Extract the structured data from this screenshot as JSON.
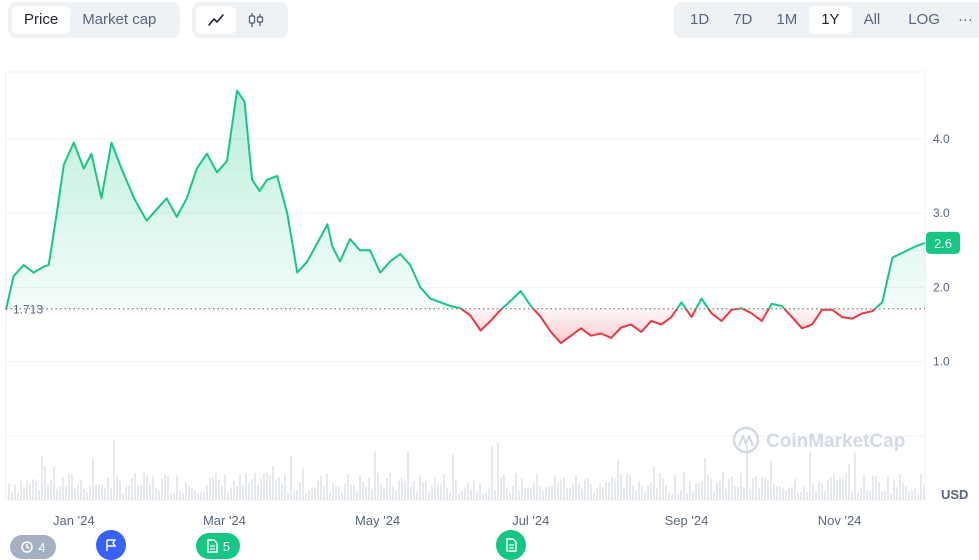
{
  "toolbar": {
    "metric_tabs": [
      {
        "label": "Price",
        "active": true
      },
      {
        "label": "Market cap",
        "active": false
      }
    ],
    "chart_type_icons": [
      "line-chart-icon",
      "candlestick-icon"
    ],
    "ranges": [
      {
        "label": "1D",
        "active": false
      },
      {
        "label": "7D",
        "active": false
      },
      {
        "label": "1M",
        "active": false
      },
      {
        "label": "1Y",
        "active": true
      },
      {
        "label": "All",
        "active": false
      },
      {
        "label": "LOG",
        "active": false
      }
    ],
    "more_label": "···"
  },
  "watermark": "CoinMarketCap",
  "currency_label": "USD",
  "colors": {
    "up": "#16c784",
    "down": "#ea3943",
    "grid": "#eff2f5",
    "text": "#58667e"
  },
  "badges": [
    {
      "name": "history-badge",
      "label": "4",
      "icon": "history-icon",
      "color": "#a6b0c3"
    },
    {
      "name": "flag-badge",
      "label": "",
      "icon": "flag-icon",
      "color": "#3861fb"
    },
    {
      "name": "news-badge",
      "label": "5",
      "icon": "document-icon",
      "color": "#16c784"
    },
    {
      "name": "news-badge-jul",
      "label": "",
      "icon": "document-icon",
      "color": "#16c784"
    }
  ],
  "chart_data": {
    "type": "area",
    "title": "",
    "xlabel": "",
    "ylabel": "USD",
    "x_range": [
      "2023-12-05",
      "2024-12-05"
    ],
    "ylim": [
      0,
      4.9
    ],
    "y_ticks": [
      1.0,
      2.0,
      3.0,
      4.0
    ],
    "x_ticks": [
      {
        "label": "Jan '24",
        "date": "2024-01-01"
      },
      {
        "label": "Mar '24",
        "date": "2024-03-01"
      },
      {
        "label": "May '24",
        "date": "2024-05-01"
      },
      {
        "label": "Jul '24",
        "date": "2024-07-01"
      },
      {
        "label": "Sep '24",
        "date": "2024-09-01"
      },
      {
        "label": "Nov '24",
        "date": "2024-11-01"
      }
    ],
    "baseline": 1.713,
    "baseline_label": "1.713",
    "current_price_label": "2.6",
    "grid": true,
    "series": [
      {
        "x": [
          "2023-12-05",
          "2023-12-08",
          "2023-12-12",
          "2023-12-16",
          "2023-12-20",
          "2023-12-22",
          "2023-12-25",
          "2023-12-28",
          "2024-01-01",
          "2024-01-05",
          "2024-01-08",
          "2024-01-12",
          "2024-01-16",
          "2024-01-20",
          "2024-01-25",
          "2024-01-30",
          "2024-02-03",
          "2024-02-07",
          "2024-02-11",
          "2024-02-15",
          "2024-02-19",
          "2024-02-23",
          "2024-02-27",
          "2024-03-02",
          "2024-03-06",
          "2024-03-09",
          "2024-03-12",
          "2024-03-15",
          "2024-03-18",
          "2024-03-22",
          "2024-03-26",
          "2024-03-30",
          "2024-04-03",
          "2024-04-07",
          "2024-04-11",
          "2024-04-13",
          "2024-04-16",
          "2024-04-20",
          "2024-04-24",
          "2024-04-28",
          "2024-05-02",
          "2024-05-06",
          "2024-05-10",
          "2024-05-14",
          "2024-05-18",
          "2024-05-22",
          "2024-05-26",
          "2024-05-30",
          "2024-06-03",
          "2024-06-07",
          "2024-06-11",
          "2024-06-15",
          "2024-06-19",
          "2024-06-23",
          "2024-06-27",
          "2024-07-01",
          "2024-07-05",
          "2024-07-09",
          "2024-07-13",
          "2024-07-17",
          "2024-07-21",
          "2024-07-25",
          "2024-07-29",
          "2024-08-02",
          "2024-08-06",
          "2024-08-10",
          "2024-08-14",
          "2024-08-18",
          "2024-08-22",
          "2024-08-26",
          "2024-08-30",
          "2024-09-03",
          "2024-09-07",
          "2024-09-11",
          "2024-09-15",
          "2024-09-19",
          "2024-09-23",
          "2024-09-27",
          "2024-10-01",
          "2024-10-05",
          "2024-10-09",
          "2024-10-13",
          "2024-10-17",
          "2024-10-21",
          "2024-10-25",
          "2024-10-29",
          "2024-11-02",
          "2024-11-06",
          "2024-11-10",
          "2024-11-14",
          "2024-11-18",
          "2024-11-20",
          "2024-11-22",
          "2024-11-25",
          "2024-11-28",
          "2024-12-01",
          "2024-12-05"
        ],
        "y": [
          1.7,
          2.15,
          2.3,
          2.2,
          2.28,
          2.3,
          2.95,
          3.65,
          3.95,
          3.6,
          3.8,
          3.2,
          3.95,
          3.6,
          3.2,
          2.9,
          3.05,
          3.2,
          2.95,
          3.2,
          3.6,
          3.8,
          3.55,
          3.7,
          4.65,
          4.5,
          3.45,
          3.3,
          3.45,
          3.5,
          3.0,
          2.2,
          2.35,
          2.6,
          2.85,
          2.55,
          2.35,
          2.65,
          2.5,
          2.5,
          2.2,
          2.35,
          2.45,
          2.3,
          2.0,
          1.85,
          1.8,
          1.75,
          1.72,
          1.62,
          1.42,
          1.55,
          1.7,
          1.82,
          1.95,
          1.75,
          1.6,
          1.4,
          1.25,
          1.35,
          1.45,
          1.35,
          1.38,
          1.32,
          1.46,
          1.5,
          1.4,
          1.55,
          1.5,
          1.6,
          1.8,
          1.6,
          1.85,
          1.65,
          1.55,
          1.7,
          1.72,
          1.65,
          1.55,
          1.78,
          1.75,
          1.6,
          1.45,
          1.5,
          1.7,
          1.7,
          1.6,
          1.58,
          1.65,
          1.68,
          1.8,
          2.1,
          2.4,
          2.45,
          2.5,
          2.55,
          2.6
        ]
      }
    ]
  }
}
